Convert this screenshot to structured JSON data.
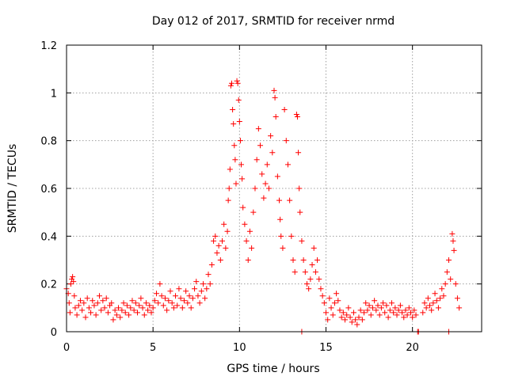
{
  "chart_data": {
    "type": "scatter",
    "title": "Day 012 of 2017, SRMTID for receiver nrmd",
    "xlabel": "GPS time / hours",
    "ylabel": "SRMTID / TECUs",
    "xlim": [
      0,
      24
    ],
    "ylim": [
      0,
      1.2
    ],
    "xticks": [
      0,
      5,
      10,
      15,
      20
    ],
    "xtick_labels": [
      "0",
      "5",
      "10",
      "15",
      "20"
    ],
    "yticks": [
      0,
      0.2,
      0.4,
      0.6,
      0.8,
      1.0,
      1.2
    ],
    "ytick_labels": [
      "0",
      "0.2",
      "0.4",
      "0.6",
      "0.8",
      "1",
      "1.2"
    ],
    "grid": true,
    "marker": "+",
    "series": [
      {
        "name": "SRMTID",
        "color": "#ff0000",
        "points": [
          [
            0.0,
            0.18
          ],
          [
            0.1,
            0.16
          ],
          [
            0.15,
            0.12
          ],
          [
            0.2,
            0.08
          ],
          [
            0.25,
            0.2
          ],
          [
            0.3,
            0.22
          ],
          [
            0.35,
            0.23
          ],
          [
            0.4,
            0.21
          ],
          [
            0.45,
            0.15
          ],
          [
            0.5,
            0.1
          ],
          [
            0.6,
            0.07
          ],
          [
            0.7,
            0.11
          ],
          [
            0.8,
            0.13
          ],
          [
            0.9,
            0.09
          ],
          [
            1.0,
            0.12
          ],
          [
            1.1,
            0.06
          ],
          [
            1.2,
            0.14
          ],
          [
            1.3,
            0.1
          ],
          [
            1.4,
            0.08
          ],
          [
            1.5,
            0.13
          ],
          [
            1.6,
            0.11
          ],
          [
            1.7,
            0.07
          ],
          [
            1.8,
            0.12
          ],
          [
            1.9,
            0.15
          ],
          [
            2.0,
            0.09
          ],
          [
            2.1,
            0.13
          ],
          [
            2.2,
            0.1
          ],
          [
            2.3,
            0.14
          ],
          [
            2.4,
            0.08
          ],
          [
            2.5,
            0.11
          ],
          [
            2.6,
            0.12
          ],
          [
            2.7,
            0.05
          ],
          [
            2.8,
            0.09
          ],
          [
            2.9,
            0.07
          ],
          [
            3.0,
            0.1
          ],
          [
            3.1,
            0.06
          ],
          [
            3.2,
            0.09
          ],
          [
            3.3,
            0.12
          ],
          [
            3.4,
            0.08
          ],
          [
            3.5,
            0.11
          ],
          [
            3.6,
            0.07
          ],
          [
            3.7,
            0.1
          ],
          [
            3.8,
            0.13
          ],
          [
            3.9,
            0.09
          ],
          [
            4.0,
            0.12
          ],
          [
            4.1,
            0.08
          ],
          [
            4.2,
            0.11
          ],
          [
            4.3,
            0.14
          ],
          [
            4.4,
            0.1
          ],
          [
            4.5,
            0.07
          ],
          [
            4.6,
            0.12
          ],
          [
            4.7,
            0.09
          ],
          [
            4.8,
            0.11
          ],
          [
            4.9,
            0.08
          ],
          [
            5.0,
            0.1
          ],
          [
            5.1,
            0.13
          ],
          [
            5.2,
            0.16
          ],
          [
            5.3,
            0.12
          ],
          [
            5.4,
            0.2
          ],
          [
            5.5,
            0.15
          ],
          [
            5.6,
            0.11
          ],
          [
            5.7,
            0.14
          ],
          [
            5.8,
            0.09
          ],
          [
            5.9,
            0.13
          ],
          [
            6.0,
            0.17
          ],
          [
            6.1,
            0.12
          ],
          [
            6.2,
            0.1
          ],
          [
            6.3,
            0.15
          ],
          [
            6.4,
            0.11
          ],
          [
            6.5,
            0.18
          ],
          [
            6.6,
            0.14
          ],
          [
            6.7,
            0.1
          ],
          [
            6.8,
            0.13
          ],
          [
            6.9,
            0.17
          ],
          [
            7.0,
            0.12
          ],
          [
            7.1,
            0.15
          ],
          [
            7.2,
            0.1
          ],
          [
            7.3,
            0.14
          ],
          [
            7.4,
            0.18
          ],
          [
            7.5,
            0.21
          ],
          [
            7.6,
            0.15
          ],
          [
            7.7,
            0.12
          ],
          [
            7.8,
            0.17
          ],
          [
            7.9,
            0.2
          ],
          [
            8.0,
            0.14
          ],
          [
            8.1,
            0.18
          ],
          [
            8.2,
            0.24
          ],
          [
            8.3,
            0.2
          ],
          [
            8.4,
            0.28
          ],
          [
            8.5,
            0.38
          ],
          [
            8.6,
            0.4
          ],
          [
            8.7,
            0.33
          ],
          [
            8.8,
            0.36
          ],
          [
            8.9,
            0.3
          ],
          [
            9.0,
            0.38
          ],
          [
            9.1,
            0.45
          ],
          [
            9.2,
            0.35
          ],
          [
            9.3,
            0.42
          ],
          [
            9.35,
            0.55
          ],
          [
            9.4,
            0.6
          ],
          [
            9.45,
            0.68
          ],
          [
            9.5,
            1.03
          ],
          [
            9.55,
            1.04
          ],
          [
            9.6,
            0.93
          ],
          [
            9.65,
            0.87
          ],
          [
            9.7,
            0.78
          ],
          [
            9.75,
            0.72
          ],
          [
            9.8,
            0.62
          ],
          [
            9.85,
            1.05
          ],
          [
            9.9,
            1.04
          ],
          [
            9.95,
            0.97
          ],
          [
            10.0,
            0.88
          ],
          [
            10.05,
            0.8
          ],
          [
            10.1,
            0.7
          ],
          [
            10.15,
            0.64
          ],
          [
            10.2,
            0.52
          ],
          [
            10.3,
            0.45
          ],
          [
            10.4,
            0.38
          ],
          [
            10.5,
            0.3
          ],
          [
            10.6,
            0.42
          ],
          [
            10.7,
            0.35
          ],
          [
            10.8,
            0.5
          ],
          [
            10.9,
            0.6
          ],
          [
            11.0,
            0.72
          ],
          [
            11.1,
            0.85
          ],
          [
            11.2,
            0.78
          ],
          [
            11.3,
            0.66
          ],
          [
            11.4,
            0.56
          ],
          [
            11.5,
            0.62
          ],
          [
            11.6,
            0.7
          ],
          [
            11.7,
            0.6
          ],
          [
            11.8,
            0.82
          ],
          [
            11.9,
            0.75
          ],
          [
            12.0,
            1.01
          ],
          [
            12.05,
            0.98
          ],
          [
            12.1,
            0.9
          ],
          [
            12.2,
            0.65
          ],
          [
            12.3,
            0.55
          ],
          [
            12.35,
            0.47
          ],
          [
            12.4,
            0.4
          ],
          [
            12.5,
            0.35
          ],
          [
            12.6,
            0.93
          ],
          [
            12.7,
            0.8
          ],
          [
            12.8,
            0.7
          ],
          [
            12.9,
            0.55
          ],
          [
            13.0,
            0.4
          ],
          [
            13.1,
            0.3
          ],
          [
            13.2,
            0.25
          ],
          [
            13.3,
            0.91
          ],
          [
            13.35,
            0.9
          ],
          [
            13.4,
            0.75
          ],
          [
            13.45,
            0.6
          ],
          [
            13.5,
            0.5
          ],
          [
            13.6,
            0.38
          ],
          [
            13.7,
            0.3
          ],
          [
            13.8,
            0.25
          ],
          [
            13.9,
            0.2
          ],
          [
            14.0,
            0.18
          ],
          [
            14.1,
            0.22
          ],
          [
            14.2,
            0.28
          ],
          [
            14.3,
            0.35
          ],
          [
            14.4,
            0.25
          ],
          [
            14.5,
            0.3
          ],
          [
            14.6,
            0.22
          ],
          [
            14.7,
            0.18
          ],
          [
            14.8,
            0.15
          ],
          [
            14.9,
            0.12
          ],
          [
            15.0,
            0.08
          ],
          [
            15.1,
            0.05
          ],
          [
            15.2,
            0.14
          ],
          [
            15.3,
            0.1
          ],
          [
            15.4,
            0.07
          ],
          [
            15.5,
            0.12
          ],
          [
            15.6,
            0.16
          ],
          [
            15.7,
            0.13
          ],
          [
            15.8,
            0.09
          ],
          [
            15.9,
            0.06
          ],
          [
            16.0,
            0.08
          ],
          [
            16.1,
            0.05
          ],
          [
            16.2,
            0.07
          ],
          [
            16.3,
            0.1
          ],
          [
            16.4,
            0.06
          ],
          [
            16.5,
            0.04
          ],
          [
            16.6,
            0.08
          ],
          [
            16.7,
            0.05
          ],
          [
            16.8,
            0.03
          ],
          [
            16.9,
            0.06
          ],
          [
            17.0,
            0.09
          ],
          [
            17.1,
            0.05
          ],
          [
            17.2,
            0.08
          ],
          [
            17.3,
            0.12
          ],
          [
            17.4,
            0.09
          ],
          [
            17.5,
            0.11
          ],
          [
            17.6,
            0.07
          ],
          [
            17.7,
            0.1
          ],
          [
            17.8,
            0.13
          ],
          [
            17.9,
            0.09
          ],
          [
            18.0,
            0.11
          ],
          [
            18.1,
            0.07
          ],
          [
            18.2,
            0.1
          ],
          [
            18.3,
            0.12
          ],
          [
            18.4,
            0.08
          ],
          [
            18.5,
            0.11
          ],
          [
            18.6,
            0.06
          ],
          [
            18.7,
            0.09
          ],
          [
            18.8,
            0.12
          ],
          [
            18.9,
            0.08
          ],
          [
            19.0,
            0.1
          ],
          [
            19.1,
            0.07
          ],
          [
            19.2,
            0.09
          ],
          [
            19.3,
            0.11
          ],
          [
            19.4,
            0.08
          ],
          [
            19.5,
            0.06
          ],
          [
            19.6,
            0.09
          ],
          [
            19.7,
            0.07
          ],
          [
            19.8,
            0.1
          ],
          [
            19.9,
            0.08
          ],
          [
            20.0,
            0.06
          ],
          [
            20.1,
            0.09
          ],
          [
            20.2,
            0.07
          ],
          [
            20.3,
            0.0
          ],
          [
            20.35,
            0.0
          ],
          [
            20.6,
            0.08
          ],
          [
            20.7,
            0.12
          ],
          [
            20.8,
            0.1
          ],
          [
            20.9,
            0.14
          ],
          [
            21.0,
            0.11
          ],
          [
            21.1,
            0.09
          ],
          [
            21.2,
            0.12
          ],
          [
            21.3,
            0.16
          ],
          [
            21.4,
            0.13
          ],
          [
            21.5,
            0.1
          ],
          [
            21.6,
            0.14
          ],
          [
            21.7,
            0.18
          ],
          [
            21.8,
            0.15
          ],
          [
            21.9,
            0.2
          ],
          [
            22.0,
            0.25
          ],
          [
            22.1,
            0.3
          ],
          [
            22.2,
            0.22
          ],
          [
            22.3,
            0.41
          ],
          [
            22.35,
            0.38
          ],
          [
            22.4,
            0.34
          ],
          [
            22.5,
            0.2
          ],
          [
            22.6,
            0.14
          ],
          [
            22.7,
            0.1
          ],
          [
            22.1,
            0.0
          ],
          [
            13.6,
            0.0
          ]
        ]
      }
    ]
  }
}
